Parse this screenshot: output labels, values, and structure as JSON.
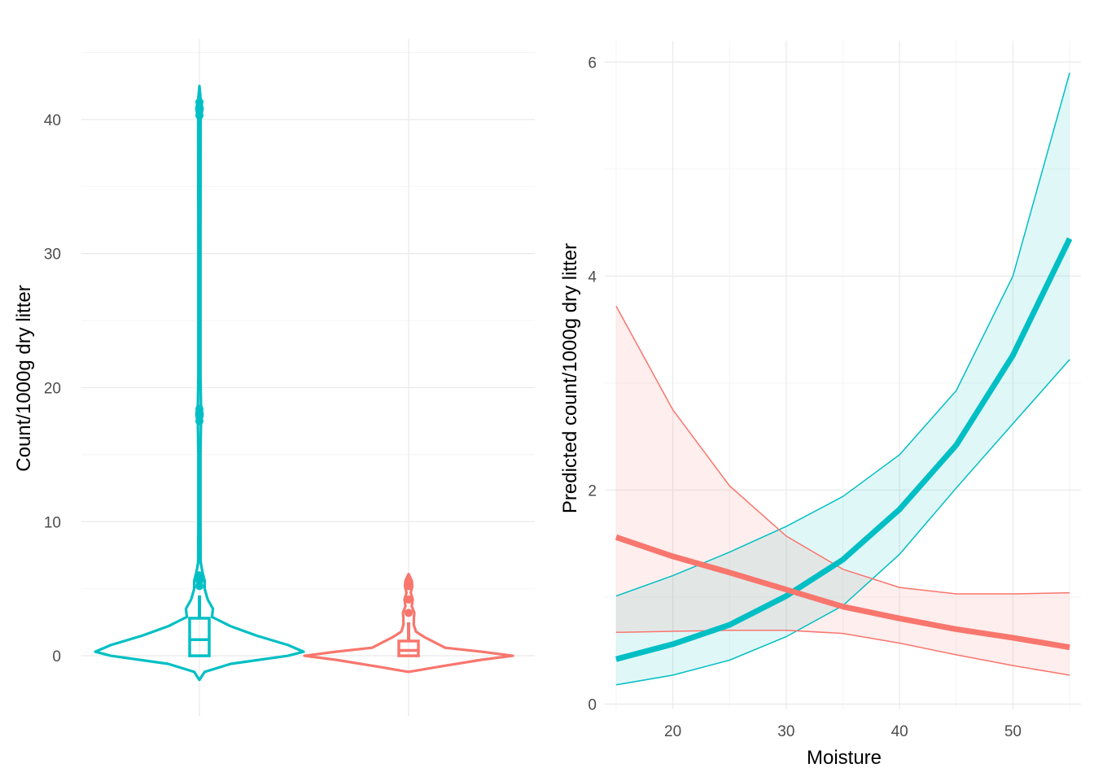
{
  "colors": {
    "teal": "#00BFC4",
    "salmon": "#F8766D"
  },
  "chart_data": [
    {
      "type": "violin",
      "title": "",
      "xlabel": "",
      "ylabel": "Count/1000g dry litter",
      "ylim": [
        -4,
        46
      ],
      "yticks": [
        0,
        10,
        20,
        30,
        40
      ],
      "legend": "none",
      "grid": true,
      "series": [
        {
          "color": "teal",
          "min": -1.8,
          "max": 42.5,
          "box": {
            "q1": 0,
            "median": 1.2,
            "q3": 2.8,
            "whisker_high": 4.5
          },
          "outliers": [
            5.2,
            5.6,
            6.0,
            17.5,
            18.0,
            18.4,
            40.3,
            40.8,
            41.3
          ],
          "density": [
            [
              -1.8,
              0
            ],
            [
              -1.2,
              0.05
            ],
            [
              -0.6,
              0.3
            ],
            [
              0,
              0.85
            ],
            [
              0.3,
              1.0
            ],
            [
              0.8,
              0.85
            ],
            [
              1.5,
              0.55
            ],
            [
              2.2,
              0.3
            ],
            [
              2.9,
              0.12
            ],
            [
              3.5,
              0.13
            ],
            [
              4.2,
              0.08
            ],
            [
              5.0,
              0.05
            ],
            [
              5.6,
              0.05
            ],
            [
              6.2,
              0.03
            ],
            [
              7.0,
              0.012
            ],
            [
              10,
              0.01
            ],
            [
              15,
              0.01
            ],
            [
              17.3,
              0.015
            ],
            [
              18,
              0.03
            ],
            [
              18.7,
              0.015
            ],
            [
              21,
              0.01
            ],
            [
              30,
              0.01
            ],
            [
              40,
              0.012
            ],
            [
              40.8,
              0.03
            ],
            [
              41.5,
              0.012
            ],
            [
              42.5,
              0
            ]
          ]
        },
        {
          "color": "salmon",
          "min": -1.2,
          "max": 6.1,
          "box": {
            "q1": 0,
            "median": 0.4,
            "q3": 1.1,
            "whisker_high": 2.5
          },
          "outliers": [
            3.2,
            4.2,
            5.2,
            5.6
          ],
          "density": [
            [
              -1.2,
              0
            ],
            [
              -0.8,
              0.3
            ],
            [
              -0.3,
              0.7
            ],
            [
              0,
              1.0
            ],
            [
              0.3,
              0.7
            ],
            [
              0.6,
              0.35
            ],
            [
              1.0,
              0.25
            ],
            [
              1.4,
              0.15
            ],
            [
              1.8,
              0.07
            ],
            [
              2.3,
              0.05
            ],
            [
              2.8,
              0.05
            ],
            [
              3.2,
              0.055
            ],
            [
              3.7,
              0.03
            ],
            [
              4.2,
              0.04
            ],
            [
              4.7,
              0.02
            ],
            [
              5.2,
              0.035
            ],
            [
              5.6,
              0.03
            ],
            [
              6.1,
              0
            ]
          ]
        }
      ]
    },
    {
      "type": "line",
      "title": "",
      "xlabel": "Moisture",
      "ylabel": "Predicted count/1000g dry litter",
      "xlim": [
        14,
        56
      ],
      "ylim": [
        -0.05,
        6.2
      ],
      "xticks": [
        20,
        30,
        40,
        50
      ],
      "yticks": [
        0,
        2,
        4,
        6
      ],
      "legend": "none",
      "grid": true,
      "x": [
        15,
        20,
        25,
        30,
        35,
        40,
        45,
        50,
        55
      ],
      "series": [
        {
          "color": "teal",
          "fit": [
            0.42,
            0.56,
            0.74,
            1.01,
            1.35,
            1.82,
            2.42,
            3.26,
            4.35
          ],
          "lower": [
            0.18,
            0.27,
            0.41,
            0.63,
            0.92,
            1.4,
            2.02,
            2.62,
            3.22
          ],
          "upper": [
            1.01,
            1.2,
            1.42,
            1.66,
            1.94,
            2.33,
            2.93,
            4.0,
            5.9
          ]
        },
        {
          "color": "salmon",
          "fit": [
            1.56,
            1.38,
            1.23,
            1.07,
            0.91,
            0.8,
            0.7,
            0.62,
            0.53
          ],
          "lower": [
            0.67,
            0.68,
            0.69,
            0.69,
            0.66,
            0.57,
            0.46,
            0.36,
            0.27
          ],
          "upper": [
            3.72,
            2.75,
            2.04,
            1.57,
            1.26,
            1.09,
            1.03,
            1.03,
            1.04
          ]
        }
      ]
    }
  ]
}
